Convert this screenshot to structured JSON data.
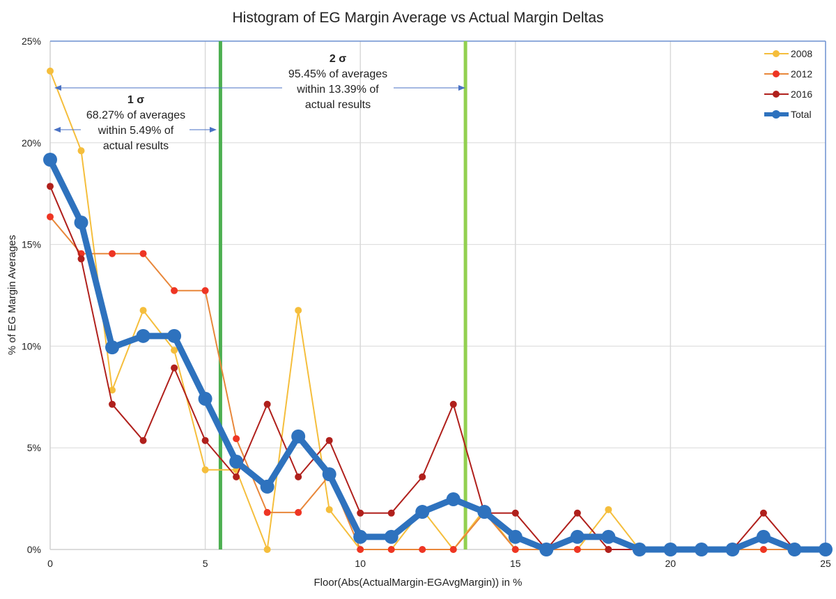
{
  "chart_data": {
    "type": "line",
    "title": "Histogram of EG Margin Average vs Actual Margin Deltas",
    "xlabel": "Floor(Abs(ActualMargin-EGAvgMargin)) in %",
    "ylabel": "% of EG Margin Averages",
    "xlim": [
      0,
      25
    ],
    "ylim": [
      0,
      25
    ],
    "x_ticks": [
      "0",
      "5",
      "10",
      "15",
      "20",
      "25"
    ],
    "y_ticks": [
      "0%",
      "5%",
      "10%",
      "15%",
      "20%",
      "25%"
    ],
    "grid": true,
    "legend": "top-right",
    "series": [
      {
        "name": "2008",
        "color": "#F5BE3C",
        "width": "thin",
        "x": [
          0,
          1,
          2,
          3,
          4,
          5,
          6,
          7,
          8,
          9,
          10,
          11,
          12,
          13,
          14,
          15,
          16,
          17,
          18,
          19,
          20,
          21,
          22,
          23,
          24
        ],
        "values": [
          23.53,
          19.61,
          7.84,
          11.76,
          9.8,
          3.92,
          3.92,
          0,
          11.76,
          1.96,
          0,
          0,
          1.96,
          0,
          1.96,
          0,
          0,
          0,
          1.96,
          0,
          0,
          0,
          0,
          0,
          0
        ]
      },
      {
        "name": "2012",
        "color": "#E8873A",
        "marker": "#EE3524",
        "width": "thin",
        "x": [
          0,
          1,
          2,
          3,
          4,
          5,
          6,
          7,
          8,
          9,
          10,
          11,
          12,
          13,
          14,
          15,
          16,
          17,
          18,
          19,
          20,
          21,
          22,
          23,
          24
        ],
        "values": [
          16.36,
          14.55,
          14.55,
          14.55,
          12.73,
          12.73,
          5.45,
          1.82,
          1.82,
          3.64,
          0,
          0,
          0,
          0,
          1.82,
          0,
          0,
          0,
          0,
          0,
          0,
          0,
          0,
          0,
          0
        ]
      },
      {
        "name": "2016",
        "color": "#B0201C",
        "width": "thin",
        "x": [
          0,
          1,
          2,
          3,
          4,
          5,
          6,
          7,
          8,
          9,
          10,
          11,
          12,
          13,
          14,
          15,
          16,
          17,
          18,
          19,
          20,
          21,
          22,
          23,
          24
        ],
        "values": [
          17.86,
          14.29,
          7.14,
          5.36,
          8.93,
          5.36,
          3.57,
          7.14,
          3.57,
          5.36,
          1.79,
          1.79,
          3.57,
          7.14,
          1.79,
          1.79,
          0,
          1.79,
          0,
          0,
          0,
          0,
          0,
          1.79,
          0
        ]
      },
      {
        "name": "Total",
        "color": "#2E72BE",
        "width": "thick",
        "x": [
          0,
          1,
          2,
          3,
          4,
          5,
          6,
          7,
          8,
          9,
          10,
          11,
          12,
          13,
          14,
          15,
          16,
          17,
          18,
          19,
          20,
          21,
          22,
          23,
          24,
          25
        ],
        "values": [
          19.17,
          16.08,
          9.94,
          10.5,
          10.5,
          7.41,
          4.32,
          3.09,
          5.56,
          3.7,
          0.62,
          0.62,
          1.85,
          2.47,
          1.85,
          0.62,
          0,
          0.62,
          0.62,
          0,
          0,
          0,
          0,
          0.62,
          0,
          0
        ]
      }
    ],
    "reference_lines": [
      {
        "x": 5.49,
        "color": "#4CAF50"
      },
      {
        "x": 13.39,
        "color": "#92D050"
      }
    ],
    "annotations": [
      {
        "heading": "1 σ",
        "lines": [
          "68.27% of averages",
          "within 5.49% of",
          "actual results"
        ]
      },
      {
        "heading": "2 σ",
        "lines": [
          "95.45% of averages",
          "within 13.39% of",
          "actual results"
        ]
      }
    ]
  }
}
